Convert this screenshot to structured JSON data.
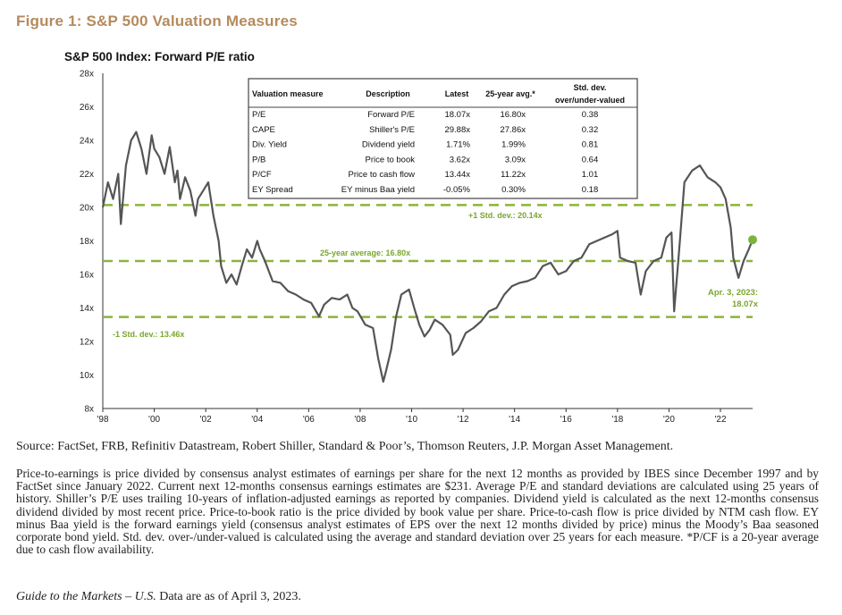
{
  "figure_title": "Figure 1: S&P 500 Valuation Measures",
  "source": "Source: FactSet, FRB, Refinitiv Datastream, Robert Shiller, Standard & Poor’s, Thomson Reuters, J.P. Morgan Asset Management.",
  "notes": "Price-to-earnings is price divided by consensus analyst estimates of earnings per share for the next 12 months as provided by IBES since December 1997 and by FactSet since January 2022. Current next 12-months consensus earnings estimates are $231. Average P/E and standard deviations are calculated using 25 years of history. Shiller’s P/E uses trailing 10-years of inflation-adjusted earnings as reported by companies. Dividend yield is calculated as the next 12-months consensus dividend divided by most recent price. Price-to-book ratio is the price divided by book value per share. Price-to-cash flow is price divided by NTM cash flow. EY minus Baa yield is the forward earnings yield (consensus analyst estimates of EPS over the next 12 months divided by price) minus the Moody’s Baa seasoned corporate bond yield. Std. dev. over-/under-valued is calculated using the average and standard deviation over 25 years for each measure. *P/CF is a 20-year average due to cash flow availability.",
  "guide_italic": "Guide to the Markets – U.S.",
  "guide_rest": " Data are as of April 3, 2023.",
  "colors": {
    "title": "#b58a5e",
    "line": "#555555",
    "dashed": "#8cb43c",
    "label_green": "#7aa62e",
    "marker": "#7fb13f"
  },
  "chart_data": {
    "type": "line",
    "title": "S&P 500 Index: Forward P/E ratio",
    "ylim": [
      8,
      28
    ],
    "xlim": [
      1998,
      2023.25
    ],
    "yticks": [
      8,
      10,
      12,
      14,
      16,
      18,
      20,
      22,
      24,
      26,
      28
    ],
    "ytick_labels": [
      "8x",
      "10x",
      "12x",
      "14x",
      "16x",
      "18x",
      "20x",
      "22x",
      "24x",
      "26x",
      "28x"
    ],
    "xticks": [
      1998,
      2000,
      2002,
      2004,
      2006,
      2008,
      2010,
      2012,
      2014,
      2016,
      2018,
      2020,
      2022
    ],
    "xtick_labels": [
      "'98",
      "'00",
      "'02",
      "'04",
      "'06",
      "'08",
      "'10",
      "'12",
      "'14",
      "'16",
      "'18",
      "'20",
      "'22"
    ],
    "grid": false,
    "series": [
      {
        "x": [
          1998.0,
          1998.2,
          1998.4,
          1998.6,
          1998.7,
          1998.9,
          1999.1,
          1999.3,
          1999.5,
          1999.7,
          1999.9,
          2000.0,
          2000.2,
          2000.4,
          2000.6,
          2000.8,
          2000.9,
          2001.0,
          2001.2,
          2001.4,
          2001.6,
          2001.7,
          2001.9,
          2002.1,
          2002.3,
          2002.5,
          2002.6,
          2002.8,
          2003.0,
          2003.2,
          2003.4,
          2003.6,
          2003.8,
          2004.0,
          2004.1,
          2004.3,
          2004.6,
          2004.9,
          2005.2,
          2005.5,
          2005.8,
          2006.1,
          2006.4,
          2006.6,
          2006.9,
          2007.2,
          2007.5,
          2007.7,
          2007.9,
          2008.2,
          2008.5,
          2008.7,
          2008.9,
          2009.0,
          2009.2,
          2009.4,
          2009.6,
          2009.9,
          2010.1,
          2010.3,
          2010.5,
          2010.7,
          2010.9,
          2011.2,
          2011.5,
          2011.6,
          2011.8,
          2012.1,
          2012.4,
          2012.7,
          2013.0,
          2013.3,
          2013.6,
          2013.9,
          2014.2,
          2014.5,
          2014.8,
          2015.1,
          2015.4,
          2015.7,
          2016.0,
          2016.3,
          2016.6,
          2016.9,
          2017.2,
          2017.5,
          2017.8,
          2018.0,
          2018.1,
          2018.4,
          2018.7,
          2018.9,
          2019.1,
          2019.4,
          2019.7,
          2019.9,
          2020.1,
          2020.2,
          2020.4,
          2020.6,
          2020.9,
          2021.2,
          2021.5,
          2021.8,
          2022.0,
          2022.2,
          2022.4,
          2022.5,
          2022.7,
          2022.9,
          2023.1,
          2023.25
        ],
        "values": [
          20.0,
          21.5,
          20.5,
          22.0,
          19.0,
          22.5,
          24.0,
          24.5,
          23.5,
          22.0,
          24.3,
          23.5,
          23.0,
          22.0,
          23.6,
          21.5,
          22.2,
          20.5,
          21.8,
          21.0,
          19.5,
          20.5,
          21.0,
          21.5,
          19.5,
          18.0,
          16.5,
          15.5,
          16.0,
          15.4,
          16.5,
          17.5,
          17.0,
          18.0,
          17.5,
          16.8,
          15.6,
          15.5,
          15.0,
          14.8,
          14.5,
          14.3,
          13.5,
          14.2,
          14.6,
          14.5,
          14.8,
          14.0,
          13.8,
          13.0,
          12.8,
          11.0,
          9.6,
          10.2,
          11.5,
          13.5,
          14.8,
          15.1,
          14.0,
          13.0,
          12.3,
          12.7,
          13.3,
          13.0,
          12.4,
          11.2,
          11.5,
          12.5,
          12.8,
          13.2,
          13.8,
          14.0,
          14.8,
          15.3,
          15.5,
          15.6,
          15.8,
          16.5,
          16.7,
          16.0,
          16.2,
          16.8,
          17.0,
          17.8,
          18.0,
          18.2,
          18.4,
          18.6,
          17.0,
          16.8,
          16.7,
          14.8,
          16.2,
          16.8,
          17.0,
          18.2,
          18.5,
          13.8,
          17.5,
          21.5,
          22.2,
          22.5,
          21.8,
          21.5,
          21.2,
          20.5,
          18.8,
          17.0,
          15.8,
          16.8,
          17.5,
          18.07
        ]
      }
    ],
    "annotations": {
      "plus_label": "+1 Std. dev.: 20.14x",
      "avg_label": "25-year average: 16.80x",
      "minus_label": "-1 Std. dev.: 13.46x",
      "latest_label_1": "Apr. 3, 2023:",
      "latest_label_2": "18.07x"
    },
    "reference_lines": {
      "plus_one_sd": 20.14,
      "average": 16.8,
      "minus_one_sd": 13.46
    },
    "latest_point": {
      "x": 2023.25,
      "y": 18.07
    },
    "table": {
      "headers": [
        "Valuation measure",
        "Description",
        "Latest",
        "25-year avg.*",
        "Std. dev. over/under-valued"
      ],
      "header_last_line1": "Std. dev.",
      "header_last_line2": "over/under-valued",
      "rows": [
        [
          "P/E",
          "Forward P/E",
          "18.07x",
          "16.80x",
          "0.38"
        ],
        [
          "CAPE",
          "Shiller's P/E",
          "29.88x",
          "27.86x",
          "0.32"
        ],
        [
          "Div. Yield",
          "Dividend yield",
          "1.71%",
          "1.99%",
          "0.81"
        ],
        [
          "P/B",
          "Price to book",
          "3.62x",
          "3.09x",
          "0.64"
        ],
        [
          "P/CF",
          "Price to cash flow",
          "13.44x",
          "11.22x",
          "1.01"
        ],
        [
          "EY Spread",
          "EY minus Baa yield",
          "-0.05%",
          "0.30%",
          "0.18"
        ]
      ]
    }
  }
}
